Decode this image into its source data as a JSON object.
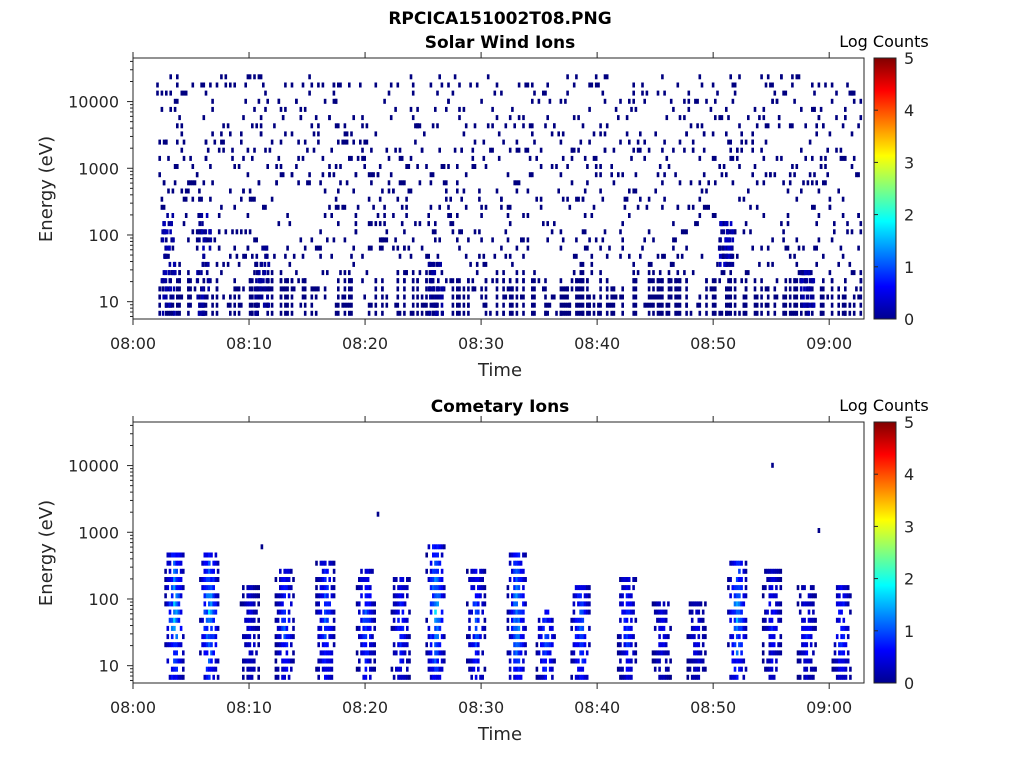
{
  "figure_title": "RPCICA151002T08.PNG",
  "chart_data": [
    {
      "type": "heatmap",
      "title": "Solar Wind Ions",
      "xlabel": "Time",
      "ylabel": "Energy (eV)",
      "x_range": [
        "08:00",
        "09:03"
      ],
      "x_ticks": [
        "08:00",
        "08:10",
        "08:20",
        "08:30",
        "08:40",
        "08:50",
        "09:00"
      ],
      "y_scale": "log",
      "y_range": [
        5.5,
        45000
      ],
      "y_ticks": [
        10,
        100,
        1000,
        10000
      ],
      "y_tick_labels": [
        "10",
        "100",
        "1000",
        "10000"
      ],
      "colorbar": {
        "title": "Log Counts",
        "range": [
          0,
          5
        ],
        "ticks": [
          "0",
          "1",
          "2",
          "3",
          "4",
          "5"
        ],
        "colormap": "jet"
      },
      "data_start": "08:02",
      "description_counts": "sparse single-count hits (log counts ~0) scattered across all energies 8-20000 eV, denser below 100 eV",
      "clusters": [
        {
          "t": "08:03",
          "e_low": 6,
          "e_high": 200,
          "level": 0.3
        },
        {
          "t": "08:06",
          "e_low": 6,
          "e_high": 200,
          "level": 0.3
        },
        {
          "t": "08:11",
          "e_low": 6,
          "e_high": 60,
          "level": 0.2
        },
        {
          "t": "08:26",
          "e_low": 6,
          "e_high": 40,
          "level": 0.2
        },
        {
          "t": "08:51",
          "e_low": 30,
          "e_high": 150,
          "level": 0.4
        },
        {
          "t": "08:58",
          "e_low": 6,
          "e_high": 30,
          "level": 0.3
        }
      ]
    },
    {
      "type": "heatmap",
      "title": "Cometary Ions",
      "xlabel": "Time",
      "ylabel": "Energy (eV)",
      "x_range": [
        "08:00",
        "09:03"
      ],
      "x_ticks": [
        "08:00",
        "08:10",
        "08:20",
        "08:30",
        "08:40",
        "08:50",
        "09:00"
      ],
      "y_scale": "log",
      "y_range": [
        5.5,
        45000
      ],
      "y_ticks": [
        10,
        100,
        1000,
        10000
      ],
      "y_tick_labels": [
        "10",
        "100",
        "1000",
        "10000"
      ],
      "colorbar": {
        "title": "Log Counts",
        "range": [
          0,
          5
        ],
        "ticks": [
          "0",
          "1",
          "2",
          "3",
          "4",
          "5"
        ],
        "colormap": "jet"
      },
      "bursts": [
        {
          "t": "08:03.5",
          "e_low": 6,
          "e_high": 500,
          "peak_log_counts": 1.9
        },
        {
          "t": "08:06.5",
          "e_low": 6,
          "e_high": 500,
          "peak_log_counts": 1.9
        },
        {
          "t": "08:10.0",
          "e_low": 6,
          "e_high": 150,
          "peak_log_counts": 0.7
        },
        {
          "t": "08:13.0",
          "e_low": 6,
          "e_high": 250,
          "peak_log_counts": 1.3
        },
        {
          "t": "08:16.5",
          "e_low": 6,
          "e_high": 400,
          "peak_log_counts": 1.4
        },
        {
          "t": "08:20.0",
          "e_low": 6,
          "e_high": 300,
          "peak_log_counts": 1.3
        },
        {
          "t": "08:23.0",
          "e_low": 6,
          "e_high": 200,
          "peak_log_counts": 1.1
        },
        {
          "t": "08:26.0",
          "e_low": 6,
          "e_high": 600,
          "peak_log_counts": 1.9
        },
        {
          "t": "08:29.5",
          "e_low": 6,
          "e_high": 300,
          "peak_log_counts": 1.3
        },
        {
          "t": "08:33.0",
          "e_low": 6,
          "e_high": 500,
          "peak_log_counts": 1.8
        },
        {
          "t": "08:35.5",
          "e_low": 6,
          "e_high": 70,
          "peak_log_counts": 1.5
        },
        {
          "t": "08:38.5",
          "e_low": 6,
          "e_high": 150,
          "peak_log_counts": 1.6
        },
        {
          "t": "08:42.5",
          "e_low": 6,
          "e_high": 200,
          "peak_log_counts": 1.2
        },
        {
          "t": "08:45.5",
          "e_low": 6,
          "e_high": 100,
          "peak_log_counts": 0.8
        },
        {
          "t": "08:48.5",
          "e_low": 6,
          "e_high": 80,
          "peak_log_counts": 0.7
        },
        {
          "t": "08:52.0",
          "e_low": 6,
          "e_high": 400,
          "peak_log_counts": 1.8
        },
        {
          "t": "08:55.0",
          "e_low": 6,
          "e_high": 300,
          "peak_log_counts": 0.9
        },
        {
          "t": "08:58.0",
          "e_low": 6,
          "e_high": 150,
          "peak_log_counts": 0.9
        },
        {
          "t": "09:01.0",
          "e_low": 6,
          "e_high": 150,
          "peak_log_counts": 1.2
        }
      ],
      "isolated_points": [
        {
          "t": "08:11",
          "e": 600
        },
        {
          "t": "08:21",
          "e": 2000
        },
        {
          "t": "08:55",
          "e": 11000
        },
        {
          "t": "08:59",
          "e": 1000
        }
      ]
    }
  ]
}
